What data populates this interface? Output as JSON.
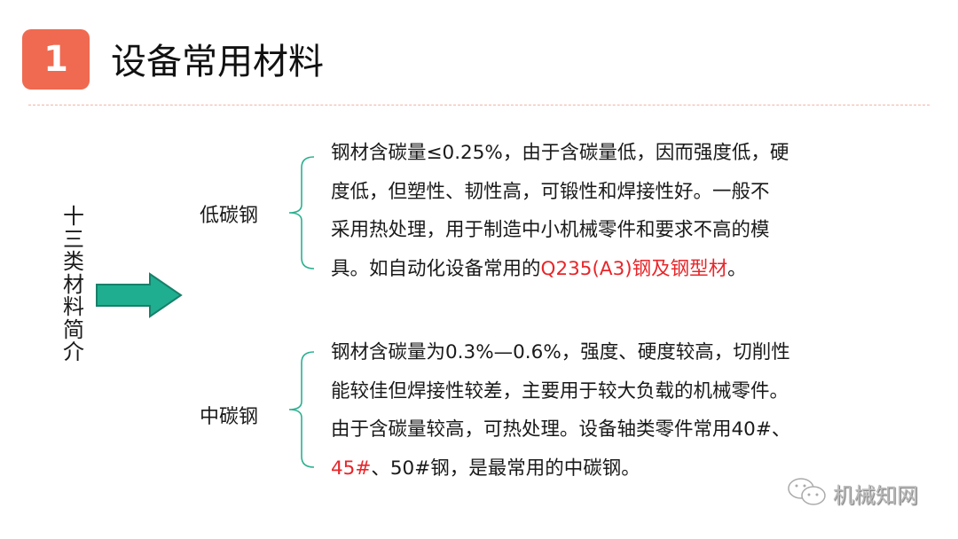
{
  "header": {
    "number": "1",
    "title": "设备常用材料"
  },
  "side_title": "十三类材料简介",
  "colors": {
    "badge": "#ef6a50",
    "arrow": "#1fae8f",
    "brace": "#2bb08f",
    "highlight": "#e8262a"
  },
  "sections": [
    {
      "label": "低碳钢",
      "lines": [
        [
          {
            "t": "钢材含碳量≤0.25%，由于含碳量低，因而强度低，硬",
            "red": false
          }
        ],
        [
          {
            "t": "度低，但塑性、韧性高，可锻性和焊接性好。一般不",
            "red": false
          }
        ],
        [
          {
            "t": "采用热处理，用于制造中小机械零件和要求不高的模",
            "red": false
          }
        ],
        [
          {
            "t": "具。如自动化设备常用的",
            "red": false
          },
          {
            "t": "Q235(A3)钢及钢型材",
            "red": true
          },
          {
            "t": "。",
            "red": false
          }
        ]
      ]
    },
    {
      "label": "中碳钢",
      "lines": [
        [
          {
            "t": "钢材含碳量为0.3%—0.6%，强度、硬度较高，切削性",
            "red": false
          }
        ],
        [
          {
            "t": "能较佳但焊接性较差，主要用于较大负载的机械零件。",
            "red": false
          }
        ],
        [
          {
            "t": "由于含碳量较高，可热处理。设备轴类零件常用40#、",
            "red": false
          }
        ],
        [
          {
            "t": "45#",
            "red": true
          },
          {
            "t": "、50#钢，是最常用的中碳钢。",
            "red": false
          }
        ]
      ]
    }
  ],
  "watermark": {
    "icon": "wechat-icon",
    "text": "机械知网"
  }
}
